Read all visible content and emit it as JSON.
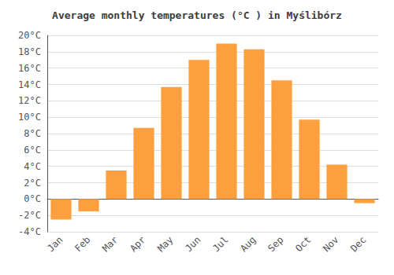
{
  "chart_data": {
    "type": "bar",
    "title": "Average monthly temperatures (°C ) in Myślibórz",
    "categories": [
      "Jan",
      "Feb",
      "Mar",
      "Apr",
      "May",
      "Jun",
      "Jul",
      "Aug",
      "Sep",
      "Oct",
      "Nov",
      "Dec"
    ],
    "values": [
      -2.5,
      -1.5,
      3.5,
      8.7,
      13.7,
      17.0,
      19.0,
      18.3,
      14.5,
      9.7,
      4.2,
      -0.5
    ],
    "color": "#FFA040",
    "ylim": [
      -4,
      20
    ],
    "yticks": [
      {
        "value": -4,
        "label": "-4°C"
      },
      {
        "value": -2,
        "label": "-2°C"
      },
      {
        "value": 0,
        "label": "0°C"
      },
      {
        "value": 2,
        "label": "2°C"
      },
      {
        "value": 4,
        "label": "4°C"
      },
      {
        "value": 6,
        "label": "6°C"
      },
      {
        "value": 8,
        "label": "8°C"
      },
      {
        "value": 10,
        "label": "10°C"
      },
      {
        "value": 12,
        "label": "12°C"
      },
      {
        "value": 14,
        "label": "14°C"
      },
      {
        "value": 16,
        "label": "16°C"
      },
      {
        "value": 18,
        "label": "18°C"
      },
      {
        "value": 20,
        "label": "20°C"
      }
    ],
    "grid": true
  }
}
